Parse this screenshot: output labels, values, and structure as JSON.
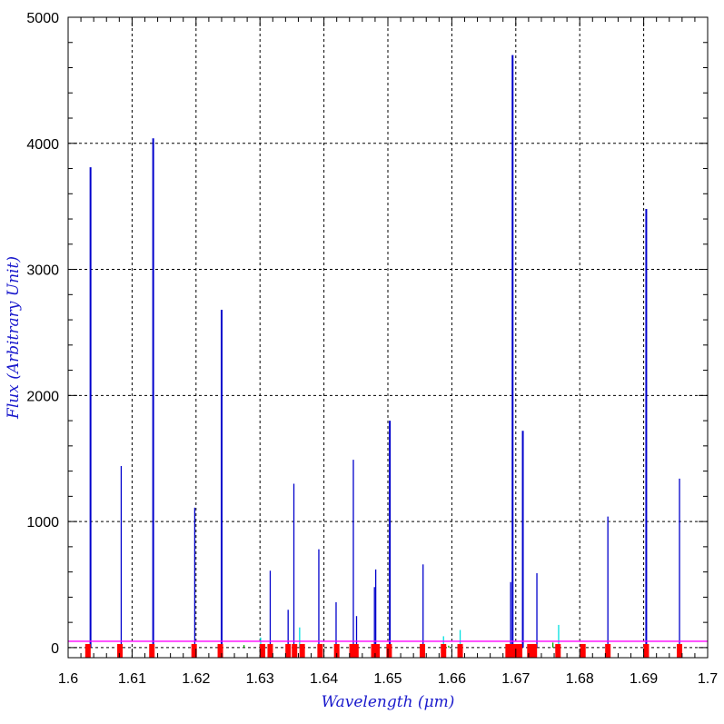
{
  "chart_data": {
    "type": "bar",
    "title": "",
    "xlabel": "Wavelength (μm)",
    "ylabel": "Flux (Arbitrary Unit)",
    "xlim": [
      1.6,
      1.7
    ],
    "ylim": [
      -80,
      5000
    ],
    "grid": true,
    "x_ticks": [
      "1.6",
      "1.61",
      "1.62",
      "1.63",
      "1.64",
      "1.65",
      "1.66",
      "1.67",
      "1.68",
      "1.69",
      "1.7"
    ],
    "y_ticks": [
      "0",
      "1000",
      "2000",
      "3000",
      "4000",
      "5000"
    ],
    "series": [
      {
        "color": "#0000cc",
        "x": [
          1.6035,
          1.6083,
          1.6133,
          1.6198,
          1.624,
          1.6316,
          1.6344,
          1.6353,
          1.6392,
          1.6419,
          1.6446,
          1.6451,
          1.6479,
          1.6481,
          1.6503,
          1.6555,
          1.6692,
          1.6695,
          1.6711,
          1.6733,
          1.6844,
          1.6904,
          1.6956
        ],
        "values": [
          3810,
          1440,
          4040,
          1110,
          2680,
          610,
          300,
          1300,
          780,
          360,
          1490,
          250,
          480,
          620,
          1800,
          660,
          520,
          4700,
          1720,
          590,
          1040,
          3480,
          1340
        ]
      },
      {
        "color": "#00e0e0",
        "x": [
          1.6301,
          1.6362,
          1.6587,
          1.6613,
          1.6767
        ],
        "values": [
          80,
          160,
          90,
          140,
          180
        ]
      },
      {
        "color": "#00aa00",
        "x": [
          1.6275,
          1.6595,
          1.6758
        ],
        "values": [
          20,
          15,
          40
        ]
      }
    ],
    "reference_line": {
      "color": "#ff00ff",
      "value": 50
    },
    "markers": {
      "color": "#ff0000",
      "x": [
        1.6031,
        1.6081,
        1.6131,
        1.6197,
        1.6238,
        1.6304,
        1.6316,
        1.6344,
        1.6354,
        1.6366,
        1.6394,
        1.642,
        1.6444,
        1.645,
        1.6478,
        1.6483,
        1.6502,
        1.6554,
        1.6587,
        1.6613,
        1.6688,
        1.6694,
        1.67,
        1.6706,
        1.6722,
        1.6729,
        1.6766,
        1.6805,
        1.6844,
        1.6904,
        1.6956
      ]
    }
  }
}
